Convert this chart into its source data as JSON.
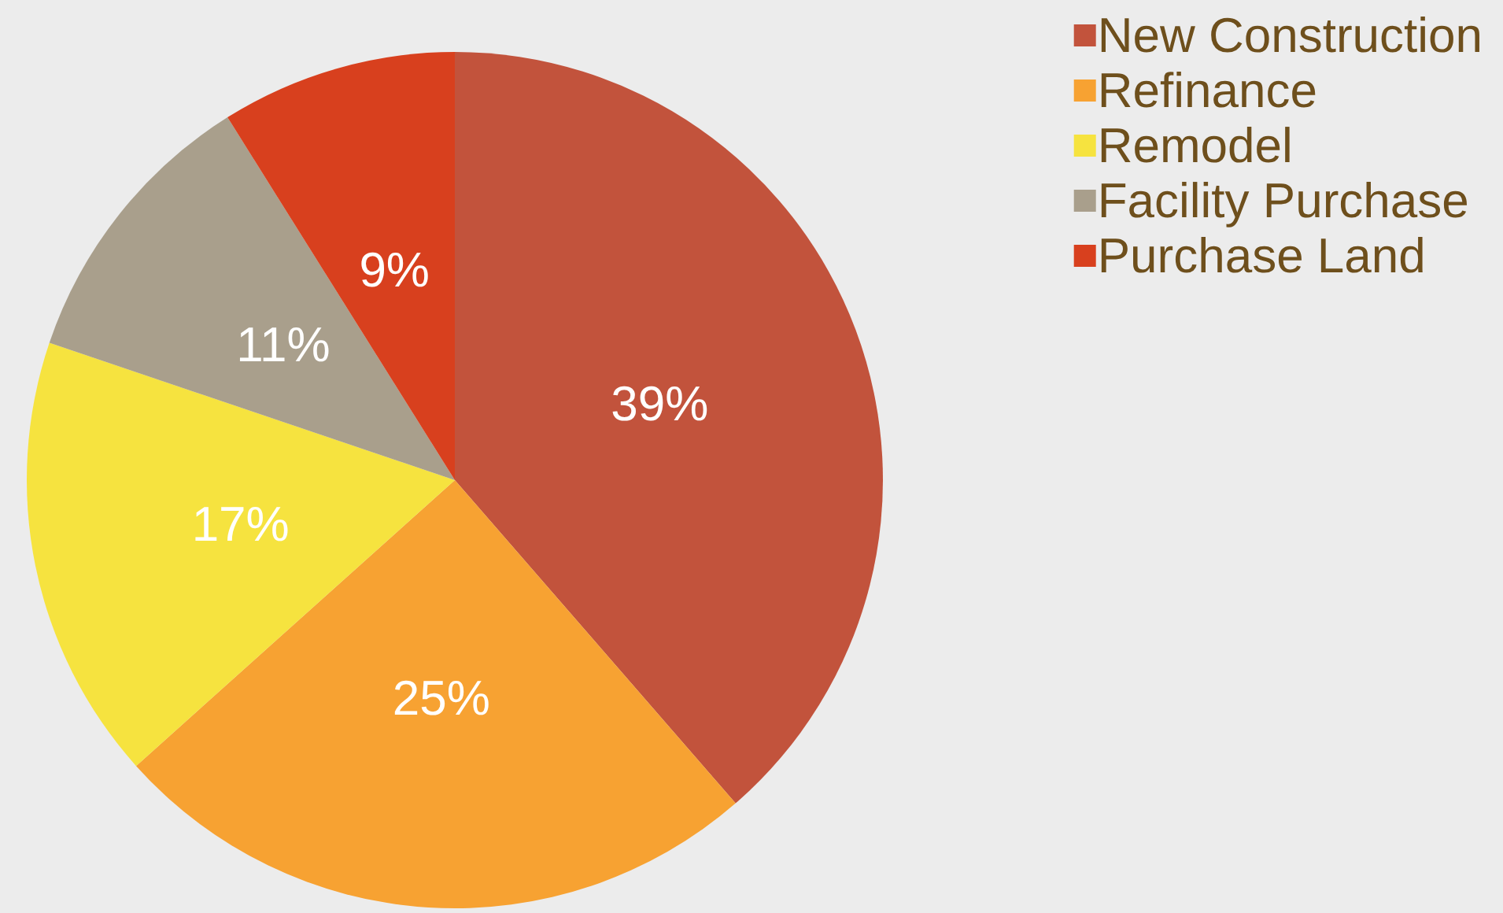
{
  "chart_data": {
    "type": "pie",
    "categories": [
      "New Construction",
      "Refinance",
      "Remodel",
      "Facility Purchase",
      "Purchase Land"
    ],
    "values": [
      39,
      25,
      17,
      11,
      9
    ],
    "value_labels": [
      "39%",
      "25%",
      "17%",
      "11%",
      "9%"
    ],
    "colors": [
      "#c2533c",
      "#f7a232",
      "#f6e33f",
      "#a99f8c",
      "#d8401e"
    ],
    "legend": "top right"
  }
}
